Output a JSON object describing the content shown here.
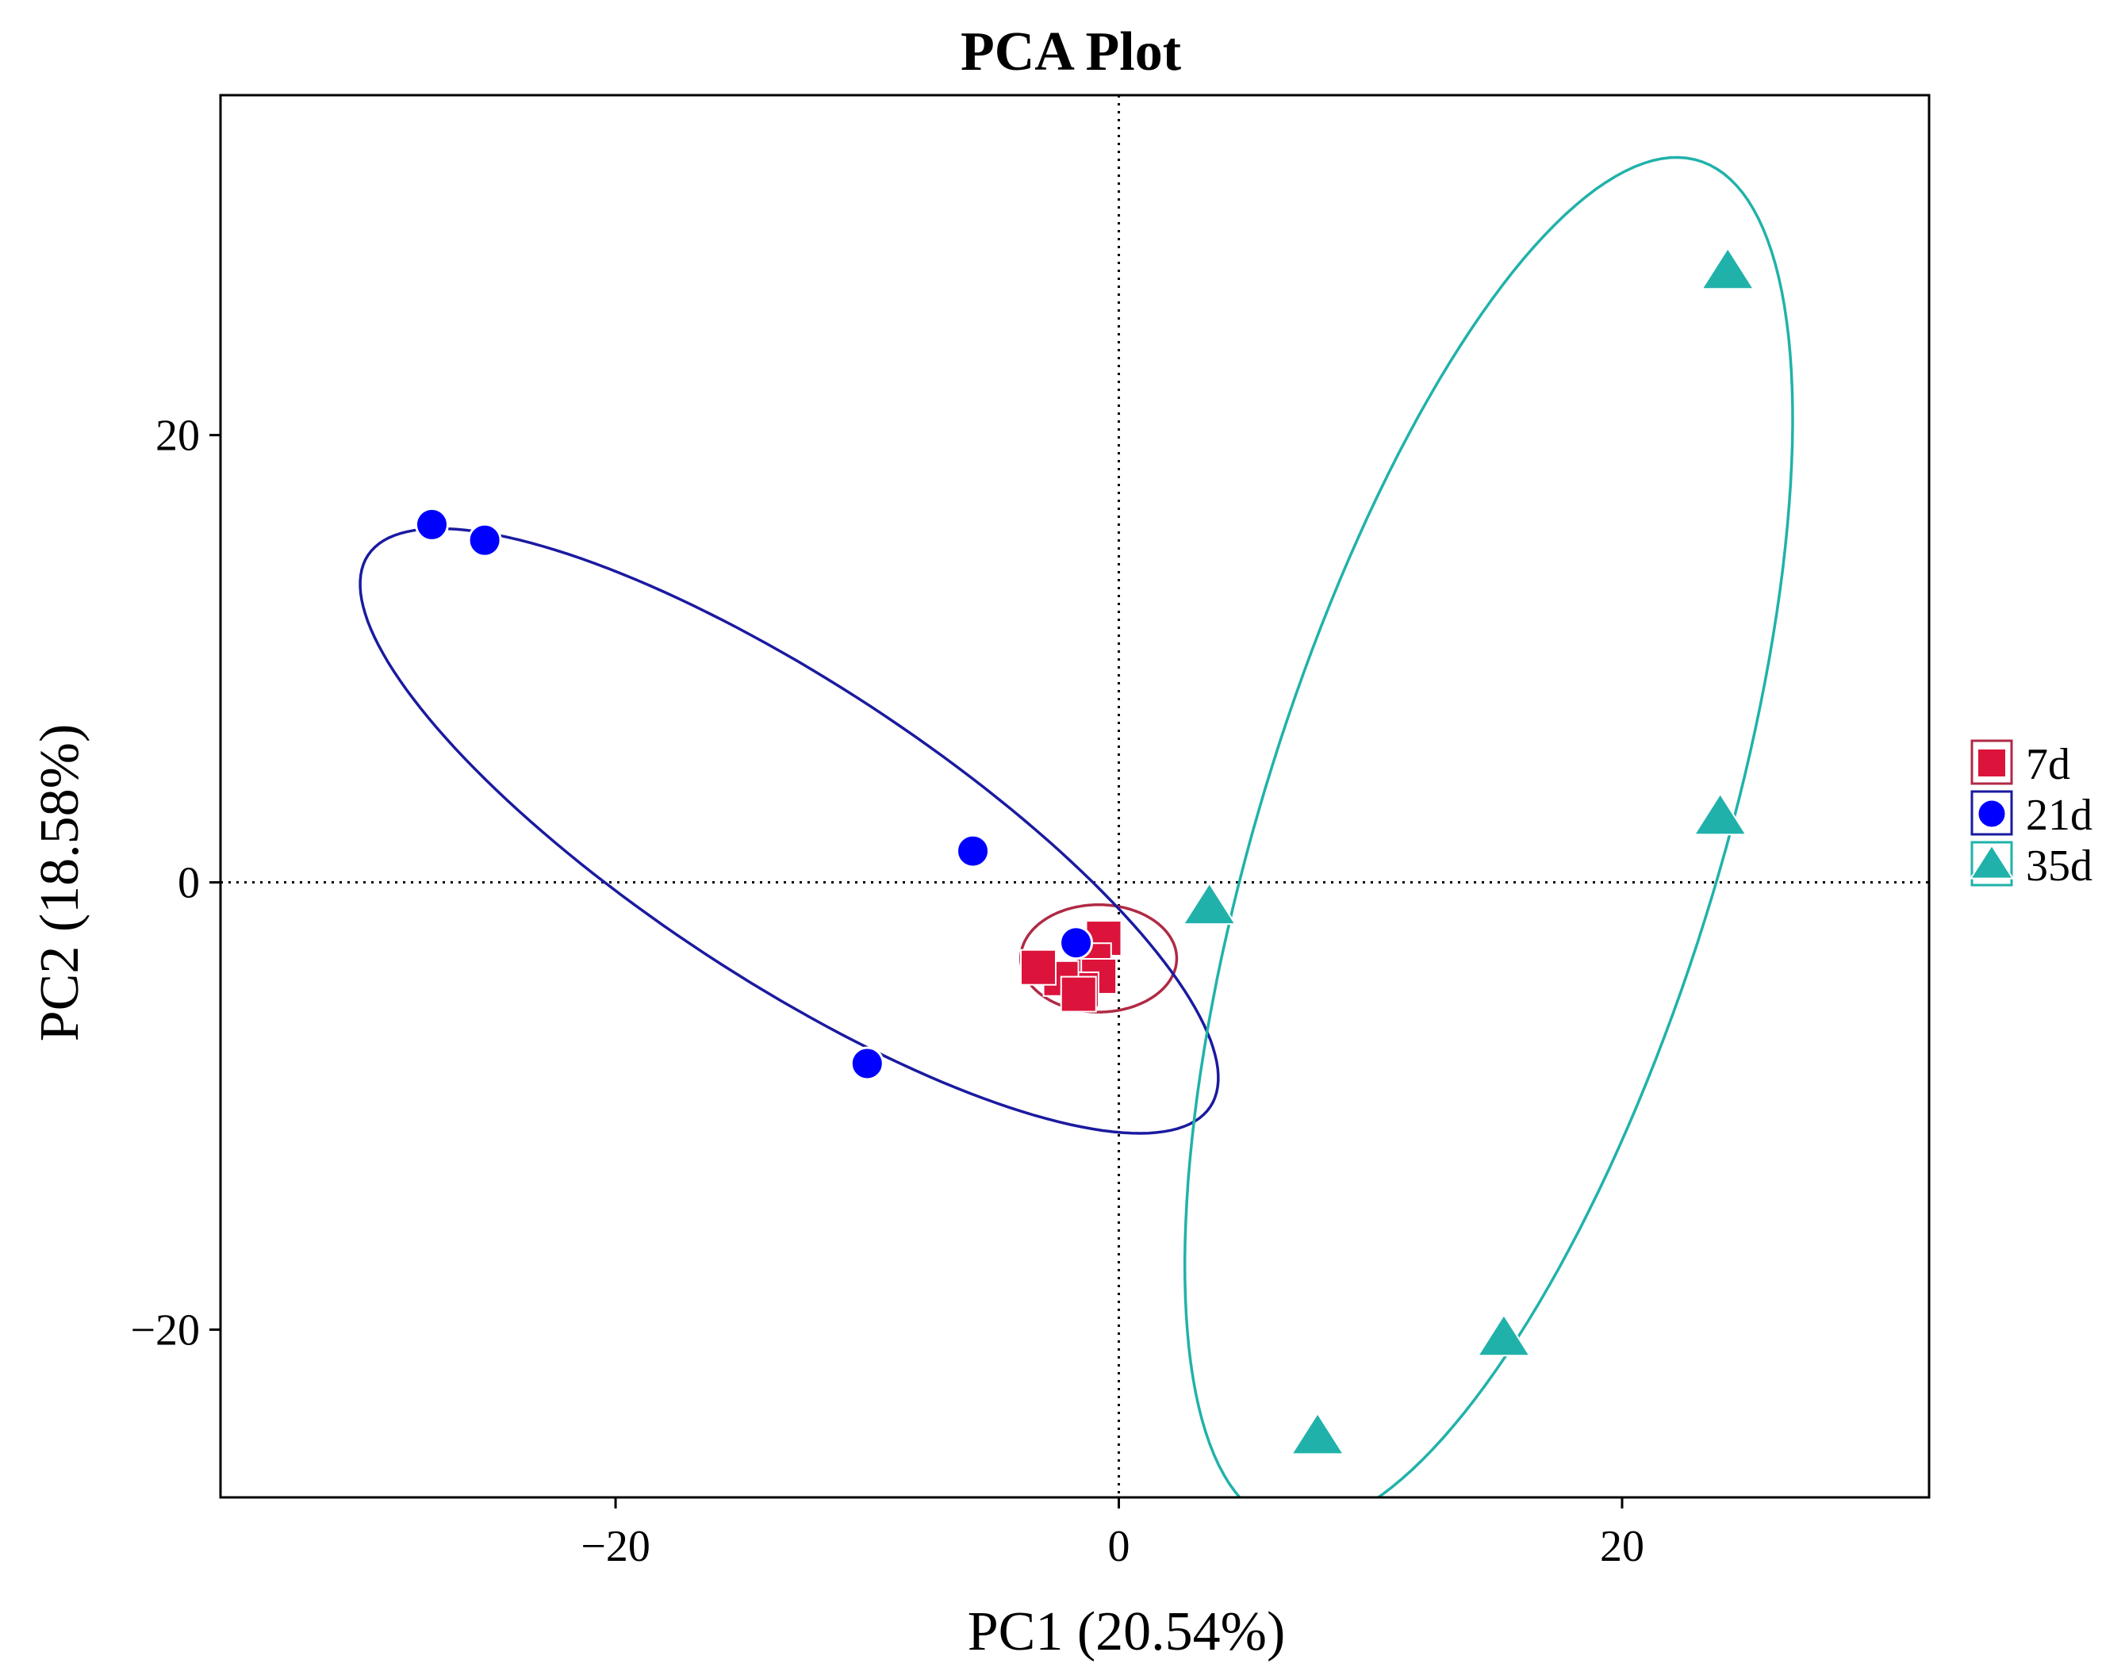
{
  "chart_data": {
    "type": "scatter",
    "title": "PCA Plot",
    "xlabel": "PC1 (20.54%)",
    "ylabel": "PC2 (18.58%)",
    "xlim": [
      -35.7,
      32.2
    ],
    "ylim": [
      -27.5,
      35.2
    ],
    "x_ticks": [
      -20,
      0,
      20
    ],
    "y_ticks": [
      -20,
      0,
      20
    ],
    "x_tick_labels": [
      "−20",
      "0",
      "20"
    ],
    "y_tick_labels": [
      "−20",
      "0",
      "20"
    ],
    "reference_lines": {
      "x": 0,
      "y": 0,
      "style": "dotted"
    },
    "grid": false,
    "legend_position": "right",
    "series": [
      {
        "name": "7d",
        "marker": "square",
        "color": "#DC143C",
        "points": [
          [
            -0.6,
            -2.5
          ],
          [
            -1.0,
            -3.5
          ],
          [
            -0.8,
            -4.2
          ],
          [
            -1.5,
            -4.8
          ],
          [
            -2.3,
            -4.3
          ],
          [
            -3.2,
            -3.8
          ],
          [
            -1.6,
            -5.0
          ]
        ],
        "ellipse": {
          "center": [
            -0.8,
            -3.4
          ],
          "rx": 3.1,
          "ry": 2.4,
          "angle": 0
        }
      },
      {
        "name": "21d",
        "marker": "circle",
        "color": "#0000FF",
        "points": [
          [
            -27.3,
            16.0
          ],
          [
            -25.2,
            15.3
          ],
          [
            -5.8,
            1.4
          ],
          [
            -1.7,
            -2.7
          ],
          [
            -10.0,
            -8.1
          ]
        ],
        "ellipse": {
          "center": [
            -13.1,
            2.3
          ],
          "rx": 20.8,
          "ry": 6.4,
          "angle": -37
        }
      },
      {
        "name": "35d",
        "marker": "triangle",
        "color": "#20B2AA",
        "points": [
          [
            24.2,
            27.3
          ],
          [
            23.9,
            2.9
          ],
          [
            3.6,
            -1.1
          ],
          [
            15.3,
            -20.4
          ],
          [
            7.9,
            -24.8
          ]
        ],
        "ellipse": {
          "center": [
            14.7,
            1.8
          ],
          "rx": 31.6,
          "ry": 9.2,
          "angle": 75
        }
      }
    ]
  }
}
